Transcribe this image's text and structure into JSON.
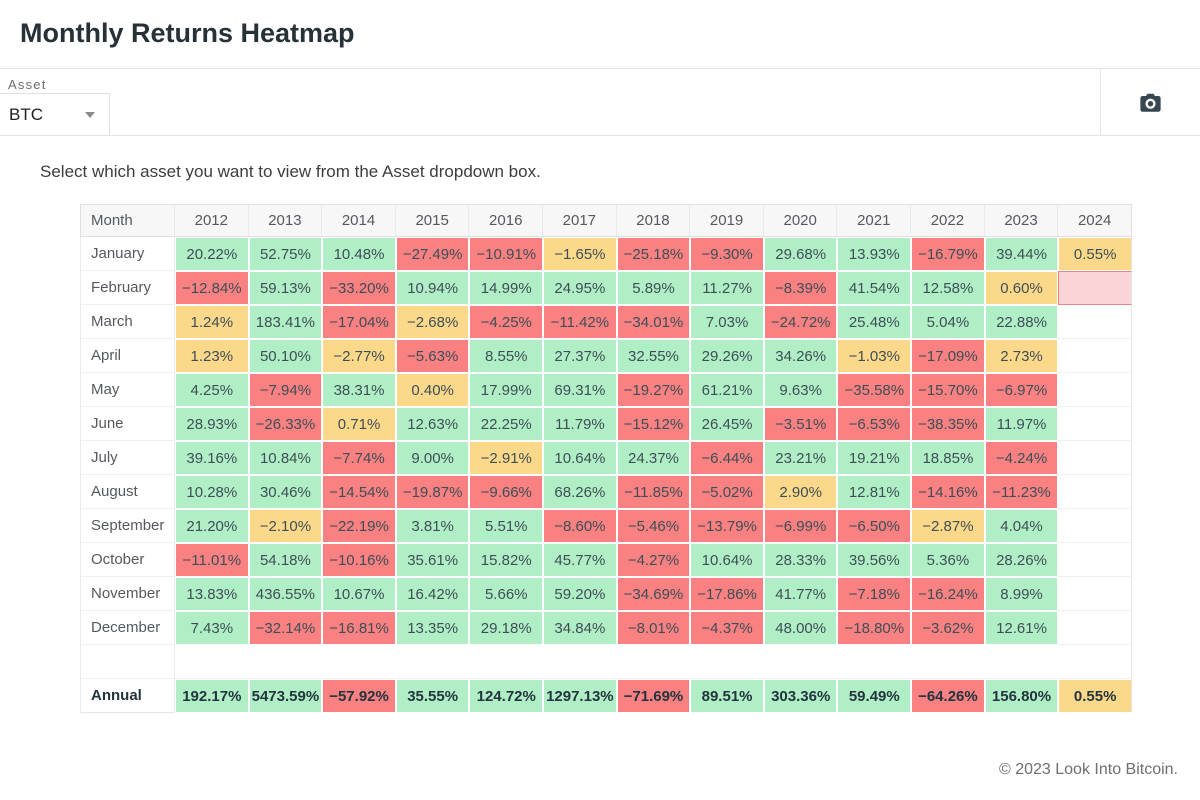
{
  "page_title": "Monthly Returns Heatmap",
  "toolbar": {
    "asset_label": "Asset",
    "asset_value": "BTC"
  },
  "instruction": "Select which asset you want to view from the Asset dropdown box.",
  "footer": "© 2023 Look Into Bitcoin.",
  "colors": {
    "positive_green": "#b0efc6",
    "negative_red": "#f98181",
    "neutral_yellow": "#fcd88a",
    "pending_pink_fill": "#fbd4d7",
    "pending_pink_border": "#e5868c",
    "header_bg": "#f7f7f7",
    "title_text": "#263238"
  },
  "chart_data": {
    "type": "heatmap",
    "title": "Monthly Returns Heatmap",
    "asset": "BTC",
    "unit": "percent",
    "color_key": {
      "g": "positive/green",
      "r": "negative/red",
      "y": "near-zero/yellow",
      "w": "no data/white",
      "p": "current month pending/pink"
    },
    "columns": [
      "Month",
      "2012",
      "2013",
      "2014",
      "2015",
      "2016",
      "2017",
      "2018",
      "2019",
      "2020",
      "2021",
      "2022",
      "2023",
      "2024"
    ],
    "rows": [
      {
        "m": "January",
        "c": [
          [
            "20.22%",
            "g"
          ],
          [
            "52.75%",
            "g"
          ],
          [
            "10.48%",
            "g"
          ],
          [
            "−27.49%",
            "r"
          ],
          [
            "−10.91%",
            "r"
          ],
          [
            "−1.65%",
            "y"
          ],
          [
            "−25.18%",
            "r"
          ],
          [
            "−9.30%",
            "r"
          ],
          [
            "29.68%",
            "g"
          ],
          [
            "13.93%",
            "g"
          ],
          [
            "−16.79%",
            "r"
          ],
          [
            "39.44%",
            "g"
          ],
          [
            "0.55%",
            "y"
          ]
        ]
      },
      {
        "m": "February",
        "c": [
          [
            "−12.84%",
            "r"
          ],
          [
            "59.13%",
            "g"
          ],
          [
            "−33.20%",
            "r"
          ],
          [
            "10.94%",
            "g"
          ],
          [
            "14.99%",
            "g"
          ],
          [
            "24.95%",
            "g"
          ],
          [
            "5.89%",
            "g"
          ],
          [
            "11.27%",
            "g"
          ],
          [
            "−8.39%",
            "r"
          ],
          [
            "41.54%",
            "g"
          ],
          [
            "12.58%",
            "g"
          ],
          [
            "0.60%",
            "y"
          ],
          [
            "",
            "p"
          ]
        ]
      },
      {
        "m": "March",
        "c": [
          [
            "1.24%",
            "y"
          ],
          [
            "183.41%",
            "g"
          ],
          [
            "−17.04%",
            "r"
          ],
          [
            "−2.68%",
            "y"
          ],
          [
            "−4.25%",
            "r"
          ],
          [
            "−11.42%",
            "r"
          ],
          [
            "−34.01%",
            "r"
          ],
          [
            "7.03%",
            "g"
          ],
          [
            "−24.72%",
            "r"
          ],
          [
            "25.48%",
            "g"
          ],
          [
            "5.04%",
            "g"
          ],
          [
            "22.88%",
            "g"
          ],
          [
            "",
            "w"
          ]
        ]
      },
      {
        "m": "April",
        "c": [
          [
            "1.23%",
            "y"
          ],
          [
            "50.10%",
            "g"
          ],
          [
            "−2.77%",
            "y"
          ],
          [
            "−5.63%",
            "r"
          ],
          [
            "8.55%",
            "g"
          ],
          [
            "27.37%",
            "g"
          ],
          [
            "32.55%",
            "g"
          ],
          [
            "29.26%",
            "g"
          ],
          [
            "34.26%",
            "g"
          ],
          [
            "−1.03%",
            "y"
          ],
          [
            "−17.09%",
            "r"
          ],
          [
            "2.73%",
            "y"
          ],
          [
            "",
            "w"
          ]
        ]
      },
      {
        "m": "May",
        "c": [
          [
            "4.25%",
            "g"
          ],
          [
            "−7.94%",
            "r"
          ],
          [
            "38.31%",
            "g"
          ],
          [
            "0.40%",
            "y"
          ],
          [
            "17.99%",
            "g"
          ],
          [
            "69.31%",
            "g"
          ],
          [
            "−19.27%",
            "r"
          ],
          [
            "61.21%",
            "g"
          ],
          [
            "9.63%",
            "g"
          ],
          [
            "−35.58%",
            "r"
          ],
          [
            "−15.70%",
            "r"
          ],
          [
            "−6.97%",
            "r"
          ],
          [
            "",
            "w"
          ]
        ]
      },
      {
        "m": "June",
        "c": [
          [
            "28.93%",
            "g"
          ],
          [
            "−26.33%",
            "r"
          ],
          [
            "0.71%",
            "y"
          ],
          [
            "12.63%",
            "g"
          ],
          [
            "22.25%",
            "g"
          ],
          [
            "11.79%",
            "g"
          ],
          [
            "−15.12%",
            "r"
          ],
          [
            "26.45%",
            "g"
          ],
          [
            "−3.51%",
            "r"
          ],
          [
            "−6.53%",
            "r"
          ],
          [
            "−38.35%",
            "r"
          ],
          [
            "11.97%",
            "g"
          ],
          [
            "",
            "w"
          ]
        ]
      },
      {
        "m": "July",
        "c": [
          [
            "39.16%",
            "g"
          ],
          [
            "10.84%",
            "g"
          ],
          [
            "−7.74%",
            "r"
          ],
          [
            "9.00%",
            "g"
          ],
          [
            "−2.91%",
            "y"
          ],
          [
            "10.64%",
            "g"
          ],
          [
            "24.37%",
            "g"
          ],
          [
            "−6.44%",
            "r"
          ],
          [
            "23.21%",
            "g"
          ],
          [
            "19.21%",
            "g"
          ],
          [
            "18.85%",
            "g"
          ],
          [
            "−4.24%",
            "r"
          ],
          [
            "",
            "w"
          ]
        ]
      },
      {
        "m": "August",
        "c": [
          [
            "10.28%",
            "g"
          ],
          [
            "30.46%",
            "g"
          ],
          [
            "−14.54%",
            "r"
          ],
          [
            "−19.87%",
            "r"
          ],
          [
            "−9.66%",
            "r"
          ],
          [
            "68.26%",
            "g"
          ],
          [
            "−11.85%",
            "r"
          ],
          [
            "−5.02%",
            "r"
          ],
          [
            "2.90%",
            "y"
          ],
          [
            "12.81%",
            "g"
          ],
          [
            "−14.16%",
            "r"
          ],
          [
            "−11.23%",
            "r"
          ],
          [
            "",
            "w"
          ]
        ]
      },
      {
        "m": "September",
        "c": [
          [
            "21.20%",
            "g"
          ],
          [
            "−2.10%",
            "y"
          ],
          [
            "−22.19%",
            "r"
          ],
          [
            "3.81%",
            "g"
          ],
          [
            "5.51%",
            "g"
          ],
          [
            "−8.60%",
            "r"
          ],
          [
            "−5.46%",
            "r"
          ],
          [
            "−13.79%",
            "r"
          ],
          [
            "−6.99%",
            "r"
          ],
          [
            "−6.50%",
            "r"
          ],
          [
            "−2.87%",
            "y"
          ],
          [
            "4.04%",
            "g"
          ],
          [
            "",
            "w"
          ]
        ]
      },
      {
        "m": "October",
        "c": [
          [
            "−11.01%",
            "r"
          ],
          [
            "54.18%",
            "g"
          ],
          [
            "−10.16%",
            "r"
          ],
          [
            "35.61%",
            "g"
          ],
          [
            "15.82%",
            "g"
          ],
          [
            "45.77%",
            "g"
          ],
          [
            "−4.27%",
            "r"
          ],
          [
            "10.64%",
            "g"
          ],
          [
            "28.33%",
            "g"
          ],
          [
            "39.56%",
            "g"
          ],
          [
            "5.36%",
            "g"
          ],
          [
            "28.26%",
            "g"
          ],
          [
            "",
            "w"
          ]
        ]
      },
      {
        "m": "November",
        "c": [
          [
            "13.83%",
            "g"
          ],
          [
            "436.55%",
            "g"
          ],
          [
            "10.67%",
            "g"
          ],
          [
            "16.42%",
            "g"
          ],
          [
            "5.66%",
            "g"
          ],
          [
            "59.20%",
            "g"
          ],
          [
            "−34.69%",
            "r"
          ],
          [
            "−17.86%",
            "r"
          ],
          [
            "41.77%",
            "g"
          ],
          [
            "−7.18%",
            "r"
          ],
          [
            "−16.24%",
            "r"
          ],
          [
            "8.99%",
            "g"
          ],
          [
            "",
            "w"
          ]
        ]
      },
      {
        "m": "December",
        "c": [
          [
            "7.43%",
            "g"
          ],
          [
            "−32.14%",
            "r"
          ],
          [
            "−16.81%",
            "r"
          ],
          [
            "13.35%",
            "g"
          ],
          [
            "29.18%",
            "g"
          ],
          [
            "34.84%",
            "g"
          ],
          [
            "−8.01%",
            "r"
          ],
          [
            "−4.37%",
            "r"
          ],
          [
            "48.00%",
            "g"
          ],
          [
            "−18.80%",
            "r"
          ],
          [
            "−3.62%",
            "r"
          ],
          [
            "12.61%",
            "g"
          ],
          [
            "",
            "w"
          ]
        ]
      },
      {
        "m": "",
        "c": [
          [
            "",
            "w"
          ],
          [
            "",
            "w"
          ],
          [
            "",
            "w"
          ],
          [
            "",
            "w"
          ],
          [
            "",
            "w"
          ],
          [
            "",
            "w"
          ],
          [
            "",
            "w"
          ],
          [
            "",
            "w"
          ],
          [
            "",
            "w"
          ],
          [
            "",
            "w"
          ],
          [
            "",
            "w"
          ],
          [
            "",
            "w"
          ],
          [
            "",
            "w"
          ]
        ]
      },
      {
        "m": "Annual",
        "bold": true,
        "c": [
          [
            "192.17%",
            "g"
          ],
          [
            "5473.59%",
            "g"
          ],
          [
            "−57.92%",
            "r"
          ],
          [
            "35.55%",
            "g"
          ],
          [
            "124.72%",
            "g"
          ],
          [
            "1297.13%",
            "g"
          ],
          [
            "−71.69%",
            "r"
          ],
          [
            "89.51%",
            "g"
          ],
          [
            "303.36%",
            "g"
          ],
          [
            "59.49%",
            "g"
          ],
          [
            "−64.26%",
            "r"
          ],
          [
            "156.80%",
            "g"
          ],
          [
            "0.55%",
            "y"
          ]
        ]
      }
    ]
  }
}
